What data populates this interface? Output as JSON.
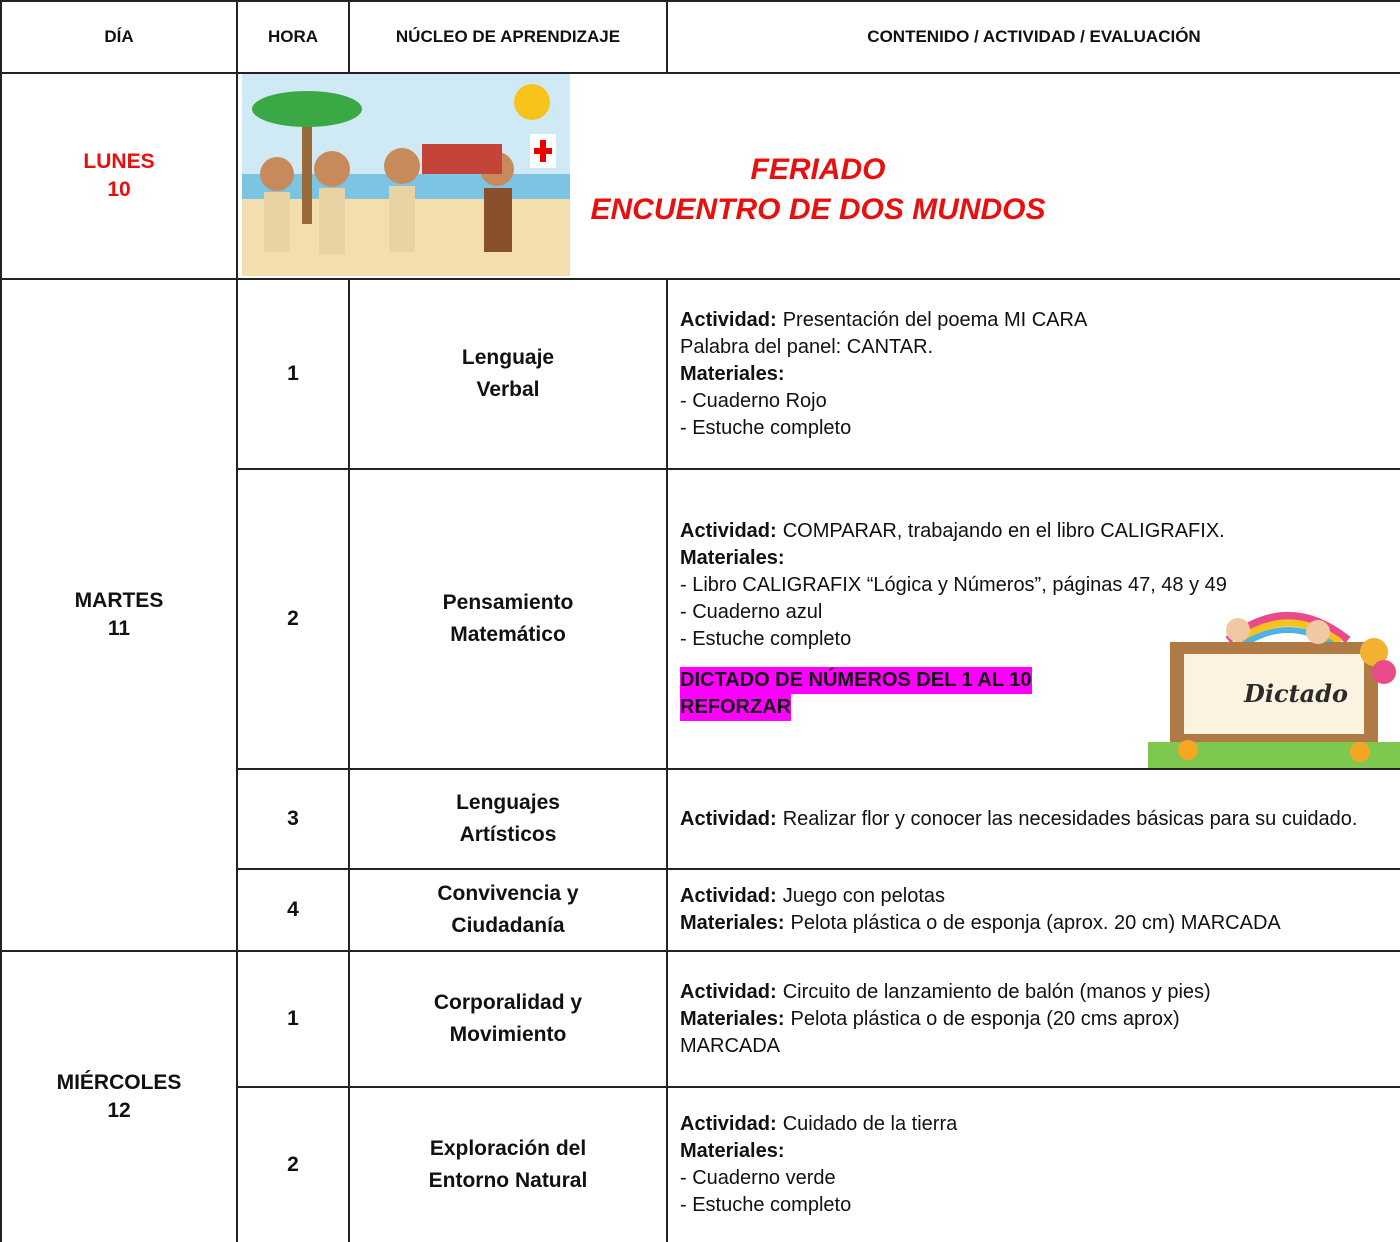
{
  "table": {
    "header": [
      "DÍA",
      "HORA",
      "NÚCLEO DE APRENDIZAJE",
      "CONTENIDO / ACTIVIDAD / EVALUACIÓN"
    ],
    "days": [
      {
        "day": "LUNES",
        "date": "10",
        "holiday": [
          "FERIADO",
          "ENCUENTRO DE DOS MUNDOS"
        ]
      },
      {
        "day": "MARTES",
        "date": "11",
        "sessions": [
          {
            "hour": "1",
            "core": [
              "Lenguaje",
              "Verbal"
            ],
            "content": [
              {
                "label": "Actividad:",
                "text": "Presentación del poema MI CARA"
              },
              {
                "text": "Palabra del panel: CANTAR."
              },
              {
                "label": "Materiales:"
              },
              {
                "text": "- Cuaderno Rojo"
              },
              {
                "text": "- Estuche completo"
              }
            ]
          },
          {
            "hour": "2",
            "core": [
              "Pensamiento",
              "Matemático"
            ],
            "content": [
              {
                "label": "Actividad:",
                "text": "COMPARAR, trabajando en el libro CALIGRAFIX."
              },
              {
                "label": "Materiales:"
              },
              {
                "text": "- Libro CALIGRAFIX “Lógica y Números”, páginas 47, 48 y 49"
              },
              {
                "text": "- Cuaderno azul"
              },
              {
                "text": "- Estuche completo"
              }
            ],
            "highlight": [
              "DICTADO DE NÚMEROS DEL 1 AL 10",
              "REFORZAR"
            ],
            "image_text": "Dictado"
          },
          {
            "hour": "3",
            "core": [
              "Lenguajes",
              "Artísticos"
            ],
            "content": [
              {
                "label": "Actividad:",
                "text": "Realizar flor y conocer las necesidades básicas para su cuidado."
              }
            ]
          },
          {
            "hour": "4",
            "core": [
              "Convivencia y",
              "Ciudadanía"
            ],
            "content": [
              {
                "label": "Actividad:",
                "text": "Juego con pelotas"
              },
              {
                "label": "Materiales:",
                "text": "Pelota plástica o de esponja (aprox. 20 cm) MARCADA"
              }
            ]
          }
        ]
      },
      {
        "day": "MIÉRCOLES",
        "date": "12",
        "sessions": [
          {
            "hour": "1",
            "core": [
              "Corporalidad y",
              "Movimiento"
            ],
            "content": [
              {
                "label": "Actividad:",
                "text": "Circuito de lanzamiento de balón (manos y pies)"
              },
              {
                "label": "Materiales:",
                "text": "Pelota plástica o de esponja (20 cms aprox)"
              },
              {
                "text": "MARCADA"
              }
            ]
          },
          {
            "hour": "2",
            "core": [
              "Exploración del",
              "Entorno Natural"
            ],
            "content": [
              {
                "label": "Actividad:",
                "text": "Cuidado de la tierra"
              },
              {
                "label": "Materiales:"
              },
              {
                "text": "- Cuaderno verde"
              },
              {
                "text": "- Estuche completo"
              }
            ]
          }
        ]
      }
    ]
  }
}
